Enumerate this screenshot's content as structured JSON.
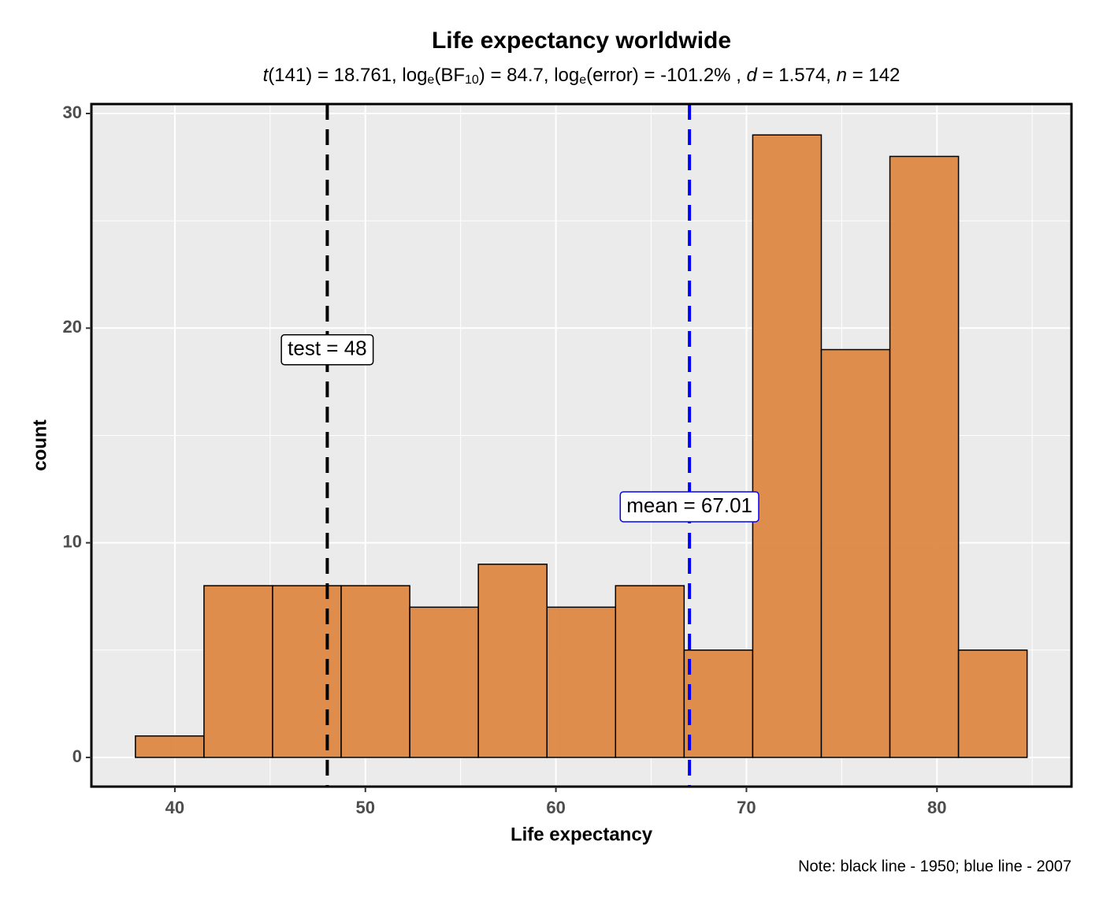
{
  "chart_data": {
    "type": "histogram",
    "title": "Life expectancy worldwide",
    "subtitle": [
      {
        "text": "t",
        "style": "italic"
      },
      {
        "text": "(141) = 18.761, log",
        "style": "normal"
      },
      {
        "text": "e",
        "style": "sub"
      },
      {
        "text": "(BF",
        "style": "normal"
      },
      {
        "text": "10",
        "style": "sub"
      },
      {
        "text": ") = 84.7, log",
        "style": "normal"
      },
      {
        "text": "e",
        "style": "sub"
      },
      {
        "text": "(error) = -101.2% , ",
        "style": "normal"
      },
      {
        "text": "d",
        "style": "italic"
      },
      {
        "text": " = 1.574, ",
        "style": "normal"
      },
      {
        "text": "n",
        "style": "italic"
      },
      {
        "text": " = 142",
        "style": "normal"
      }
    ],
    "x_label": "Life expectancy",
    "y_label": "count",
    "caption": "Note: black line - 1950; blue line - 2007",
    "bins": [
      37.93,
      41.53,
      45.13,
      48.73,
      52.33,
      55.93,
      59.53,
      63.13,
      66.73,
      70.33,
      73.93,
      77.53,
      81.13,
      84.73
    ],
    "counts": [
      1,
      8,
      8,
      8,
      7,
      9,
      7,
      8,
      5,
      29,
      19,
      28,
      5
    ],
    "color": "#dd8843",
    "xlim": [
      35.62,
      87.06
    ],
    "ylim": [
      -1.36,
      30.44
    ],
    "xticks": [
      40,
      50,
      60,
      70,
      80
    ],
    "yticks": [
      0,
      10,
      20,
      30
    ],
    "x_minor_grid": [
      45,
      55,
      65,
      75,
      85
    ],
    "y_minor_grid": [
      5,
      15,
      25
    ],
    "grid": true,
    "reference_lines": [
      {
        "value": 48,
        "label": "test = 48",
        "color": "#000000"
      },
      {
        "value": 67.01,
        "label": "mean = 67.01",
        "color": "#0000ff"
      }
    ]
  }
}
